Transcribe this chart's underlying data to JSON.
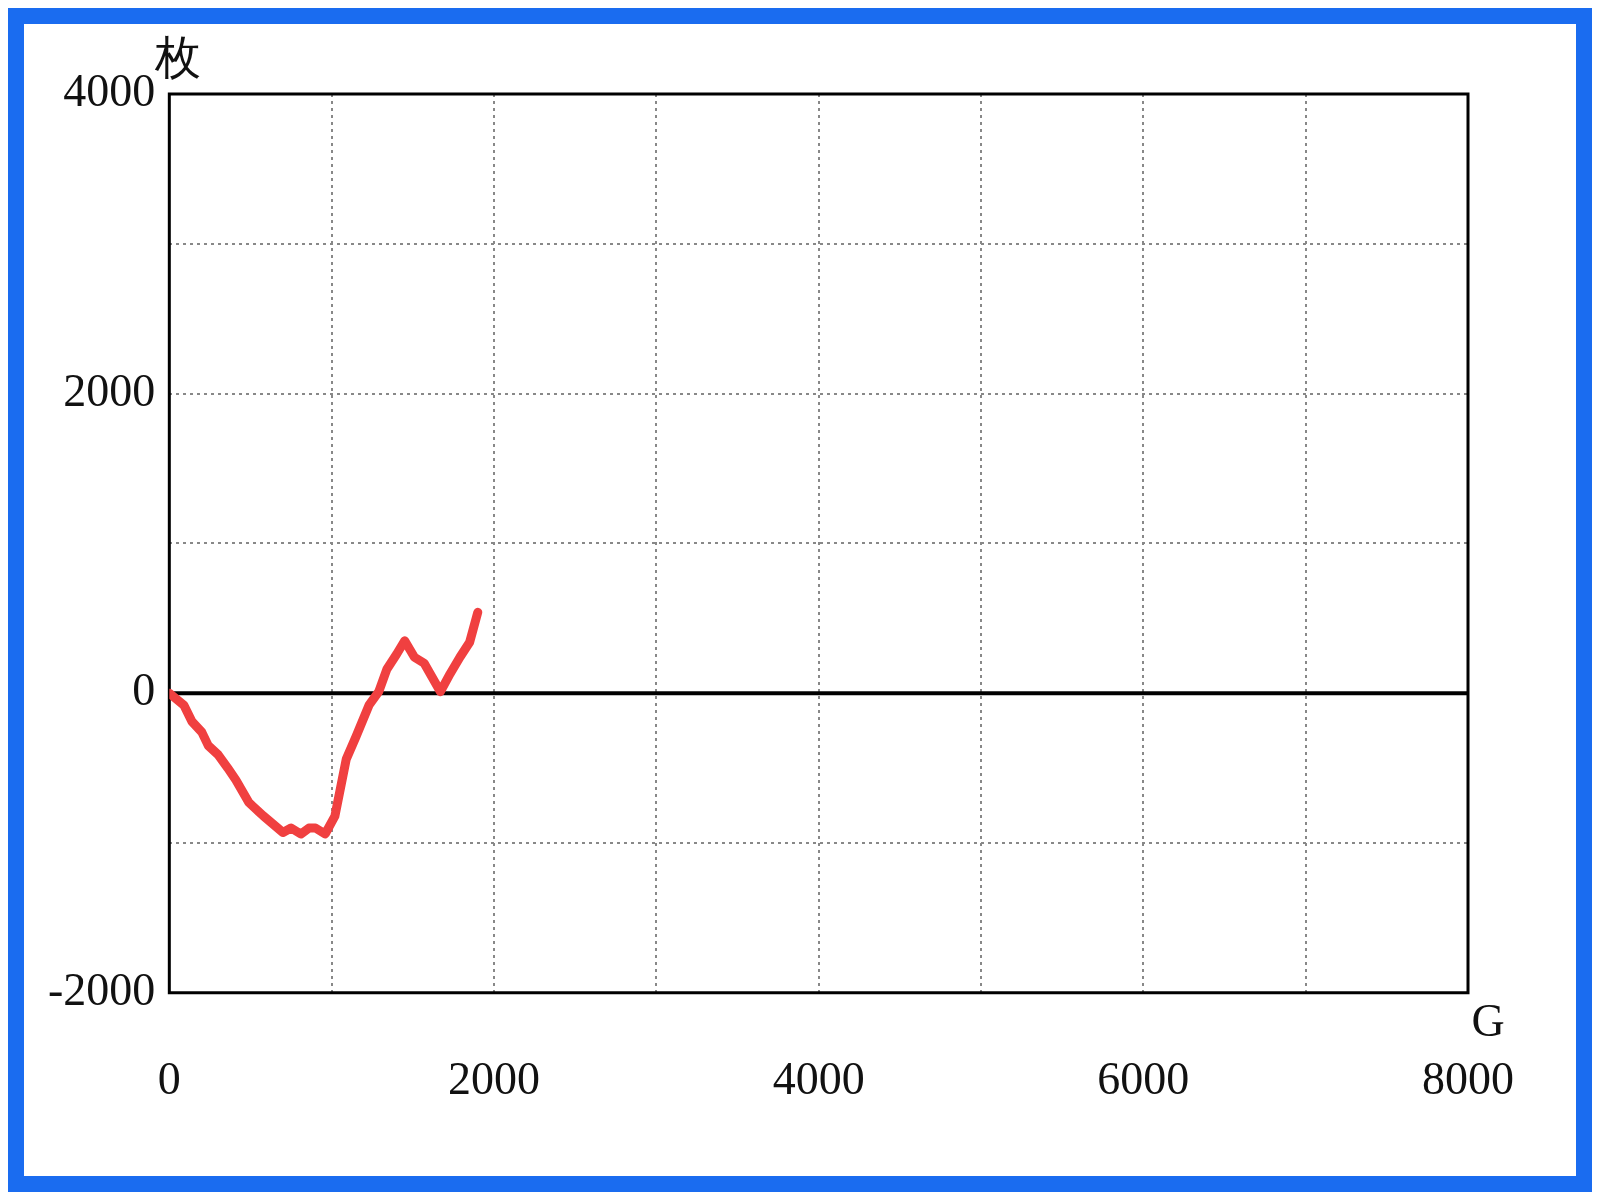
{
  "chart_data": {
    "type": "line",
    "xlabel": "G",
    "ylabel": "枚",
    "x": [
      0,
      90,
      140,
      200,
      240,
      300,
      360,
      410,
      490,
      580,
      700,
      750,
      810,
      860,
      900,
      960,
      1020,
      1090,
      1150,
      1230,
      1290,
      1340,
      1400,
      1450,
      1510,
      1570,
      1670,
      1730,
      1790,
      1850,
      1900
    ],
    "series": [
      {
        "color": "#f04040",
        "values": [
          0,
          -80,
          -190,
          -260,
          -350,
          -410,
          -500,
          -580,
          -730,
          -820,
          -930,
          -900,
          -940,
          -900,
          -900,
          -940,
          -820,
          -440,
          -290,
          -80,
          10,
          160,
          260,
          350,
          240,
          200,
          10,
          130,
          240,
          340,
          540
        ]
      }
    ],
    "xlim": [
      0,
      8000
    ],
    "xticks": [
      0,
      {
        "value": 1000,
        "label": null
      },
      2000,
      {
        "value": 3000,
        "label": null
      },
      4000,
      {
        "value": 5000,
        "label": null
      },
      6000,
      {
        "value": 7000,
        "label": null
      },
      8000
    ],
    "ylim": [
      -2000,
      4000
    ],
    "yticks": [
      -2000,
      {
        "value": -1000,
        "label": null
      },
      0,
      {
        "value": 1000,
        "label": null
      },
      2000,
      {
        "value": 3000,
        "label": null
      },
      4000
    ],
    "ref_lines": [
      {
        "axis": "y",
        "value": 0,
        "color": "#000000"
      }
    ],
    "grid": true,
    "legend": false,
    "marker": "none",
    "line_style": "solid"
  }
}
